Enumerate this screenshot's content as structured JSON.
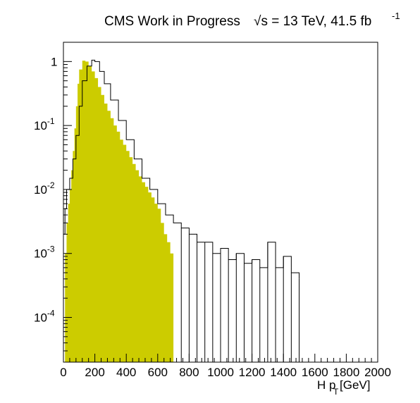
{
  "chart_data": {
    "type": "histogram",
    "title": {
      "prefix": "CMS Work in Progress",
      "sqrt_symbol": "√",
      "energy": "s = 13 TeV, 41.5 fb",
      "energy_exponent": "-1"
    },
    "xlabel": {
      "main": "H p",
      "subscript": "T",
      "unit": " [GeV]"
    },
    "ylabel": "",
    "x_scale": "linear",
    "y_scale": "log",
    "xlim": [
      0,
      2000
    ],
    "ylim": [
      2e-05,
      2
    ],
    "x_ticks": [
      0,
      200,
      400,
      600,
      800,
      1000,
      1200,
      1400,
      1600,
      1800,
      2000
    ],
    "y_ticks": [
      {
        "value": 0.0001,
        "base": "10",
        "exp": "-4"
      },
      {
        "value": 0.001,
        "base": "10",
        "exp": "-3"
      },
      {
        "value": 0.01,
        "base": "10",
        "exp": "-2"
      },
      {
        "value": 0.1,
        "base": "10",
        "exp": "-1"
      },
      {
        "value": 1,
        "base": "1",
        "exp": ""
      }
    ],
    "grid": false,
    "legend": "none",
    "series": [
      {
        "style": "filled-histogram",
        "fill_color": "#cccc00",
        "x": [
          0,
          10,
          20,
          30,
          40,
          50,
          60,
          70,
          80,
          90,
          100,
          120,
          140,
          160,
          180,
          200,
          220,
          240,
          260,
          280,
          300,
          320,
          340,
          360,
          380,
          400,
          420,
          440,
          460,
          480,
          500,
          520,
          540,
          560,
          580,
          600,
          620,
          640,
          660,
          680,
          700
        ],
        "y": [
          2e-05,
          0.001,
          0.003,
          0.006,
          0.01,
          0.02,
          0.04,
          0.09,
          0.2,
          0.45,
          0.75,
          1.03,
          1.0,
          0.85,
          0.7,
          0.55,
          0.4,
          0.3,
          0.22,
          0.17,
          0.13,
          0.1,
          0.08,
          0.06,
          0.05,
          0.04,
          0.032,
          0.025,
          0.02,
          0.016,
          0.013,
          0.011,
          0.009,
          0.0075,
          0.006,
          0.005,
          0.003,
          0.002,
          0.0015,
          0.001,
          2e-05
        ]
      },
      {
        "style": "line-histogram",
        "line_color": "#000000",
        "x": [
          0,
          10,
          20,
          40,
          60,
          80,
          100,
          120,
          150,
          180,
          200,
          230,
          260,
          300,
          350,
          400,
          450,
          500,
          550,
          600,
          650,
          700,
          750,
          800,
          850,
          900,
          950,
          1000,
          1050,
          1100,
          1150,
          1200,
          1250,
          1300,
          1350,
          1400,
          1450,
          1500
        ],
        "y": [
          0.002,
          0.005,
          0.01,
          0.015,
          0.03,
          0.07,
          0.2,
          0.5,
          0.85,
          1.05,
          1.0,
          0.7,
          0.45,
          0.25,
          0.12,
          0.06,
          0.03,
          0.015,
          0.01,
          0.006,
          0.004,
          0.003,
          0.0025,
          0.002,
          0.0015,
          0.0015,
          0.001,
          0.0012,
          0.0008,
          0.001,
          0.0007,
          0.0008,
          0.0006,
          0.0015,
          0.0006,
          0.0009,
          0.0005,
          0.0004
        ]
      }
    ]
  }
}
